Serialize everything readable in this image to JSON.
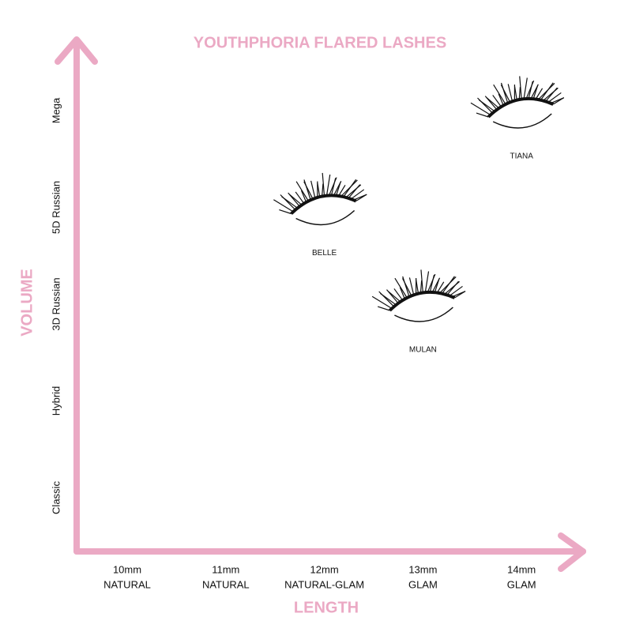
{
  "chart_data": {
    "type": "scatter",
    "title": "YOUTHPHORIA FLARED LASHES",
    "x_label": "LENGTH",
    "y_label": "VOLUME",
    "color": "#eba9c4",
    "x_categories": [
      {
        "length": "10mm",
        "style": "NATURAL"
      },
      {
        "length": "11mm",
        "style": "NATURAL"
      },
      {
        "length": "12mm",
        "style": "NATURAL-GLAM"
      },
      {
        "length": "13mm",
        "style": "GLAM"
      },
      {
        "length": "14mm",
        "style": "GLAM"
      }
    ],
    "y_categories": [
      "Classic",
      "Hybrid",
      "3D Russian",
      "5D Russian",
      "Mega"
    ],
    "points": [
      {
        "name": "BELLE",
        "x": "12mm",
        "y": "5D Russian"
      },
      {
        "name": "MULAN",
        "x": "13mm",
        "y": "3D Russian"
      },
      {
        "name": "TIANA",
        "x": "14mm",
        "y": "Mega"
      }
    ]
  }
}
